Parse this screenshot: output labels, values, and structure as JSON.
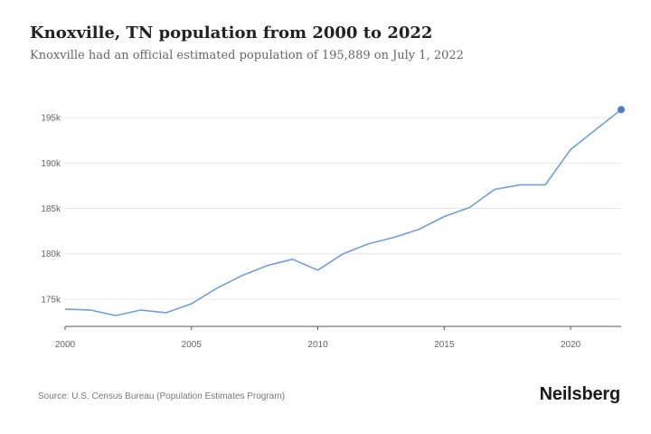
{
  "header": {
    "title": "Knoxville, TN population from 2000 to 2022",
    "subtitle": "Knoxville had an official estimated population of 195,889 on July 1, 2022"
  },
  "footer": {
    "source": "Source: U.S. Census Bureau (Population Estimates Program)",
    "brand": "Neilsberg"
  },
  "colors": {
    "line": "#6f9fd8",
    "marker": "#4a7cc9",
    "grid": "#e6e6e6",
    "axis": "#555555"
  },
  "chart_data": {
    "type": "line",
    "title": "Knoxville, TN population from 2000 to 2022",
    "subtitle": "Knoxville had an official estimated population of 195,889 on July 1, 2022",
    "xlabel": "",
    "ylabel": "",
    "xlim": [
      2000,
      2022
    ],
    "ylim": [
      172000,
      198000
    ],
    "grid": true,
    "x_ticks": [
      2000,
      2005,
      2010,
      2015,
      2020
    ],
    "x_tick_labels": [
      "2000",
      "2005",
      "2010",
      "2015",
      "2020"
    ],
    "y_ticks": [
      175000,
      180000,
      185000,
      190000,
      195000
    ],
    "y_tick_labels": [
      "175k",
      "180k",
      "185k",
      "190k",
      "195k"
    ],
    "series": [
      {
        "x": [
          2000,
          2001,
          2002,
          2003,
          2004,
          2005,
          2006,
          2007,
          2008,
          2009,
          2010,
          2011,
          2012,
          2013,
          2014,
          2015,
          2016,
          2017,
          2018,
          2019,
          2020,
          2021,
          2022
        ],
        "values": [
          173900,
          173800,
          173200,
          173800,
          173500,
          174500,
          176200,
          177600,
          178700,
          179400,
          178200,
          180000,
          181100,
          181800,
          182700,
          184100,
          185100,
          187100,
          187600,
          187600,
          191500,
          193700,
          195889
        ]
      }
    ],
    "highlight_last_point": true
  }
}
